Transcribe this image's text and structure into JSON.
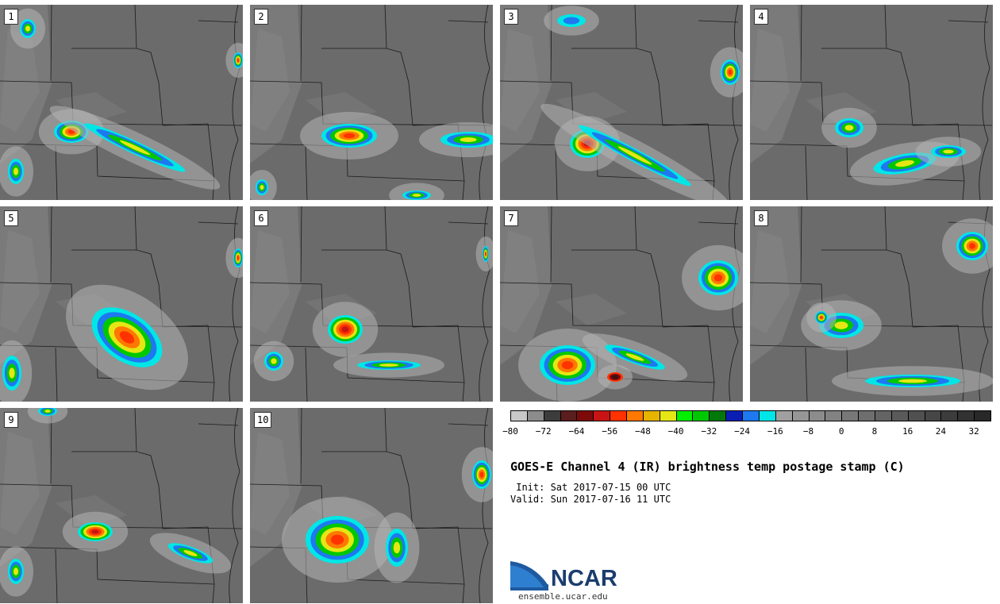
{
  "panels": [
    {
      "label": "1"
    },
    {
      "label": "2"
    },
    {
      "label": "3"
    },
    {
      "label": "4"
    },
    {
      "label": "5"
    },
    {
      "label": "6"
    },
    {
      "label": "7"
    },
    {
      "label": "8"
    },
    {
      "label": "9"
    },
    {
      "label": "10"
    }
  ],
  "colorbar": {
    "colors": [
      "#c8c8c8",
      "#8c8c8c",
      "#3c3c3c",
      "#5a1e1e",
      "#7d0a0a",
      "#c81414",
      "#ff3200",
      "#ff7800",
      "#e6b400",
      "#e6e614",
      "#00f000",
      "#00c800",
      "#00780a",
      "#0a1eb4",
      "#1e78f0",
      "#00e6e6",
      "#a0a0a0",
      "#969696",
      "#8c8c8c",
      "#828282",
      "#787878",
      "#6e6e6e",
      "#646464",
      "#5a5a5a",
      "#505050",
      "#464646",
      "#3c3c3c",
      "#323232",
      "#282828"
    ],
    "tick_labels": [
      "−80",
      "−72",
      "−64",
      "−56",
      "−48",
      "−40",
      "−32",
      "−24",
      "−16",
      "−8",
      "0",
      "8",
      "16",
      "24",
      "32"
    ]
  },
  "title": "GOES-E Channel 4 (IR) brightness temp postage stamp (C)",
  "init": " Init: Sat 2017-07-15 00 UTC",
  "valid": "Valid: Sun 2017-07-16 11 UTC",
  "logo": {
    "text": "NCAR",
    "url": "ensemble.ucar.edu"
  }
}
